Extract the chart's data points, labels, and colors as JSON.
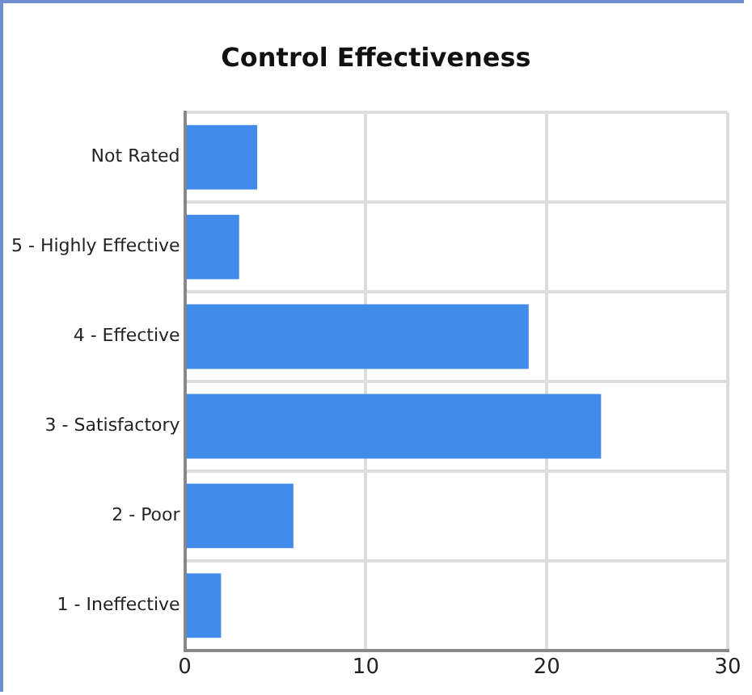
{
  "chart_data": {
    "type": "bar",
    "orientation": "horizontal",
    "title": "Control Effectiveness",
    "categories": [
      "Not Rated",
      "5 - Highly Effective",
      "4 - Effective",
      "3 - Satisfactory",
      "2 - Poor",
      "1 - Ineffective"
    ],
    "values": [
      4,
      3,
      19,
      23,
      6,
      2
    ],
    "color": "#428bea",
    "xlim": [
      0,
      30
    ],
    "xticks": [
      0,
      10,
      20,
      30
    ],
    "grid": true
  }
}
